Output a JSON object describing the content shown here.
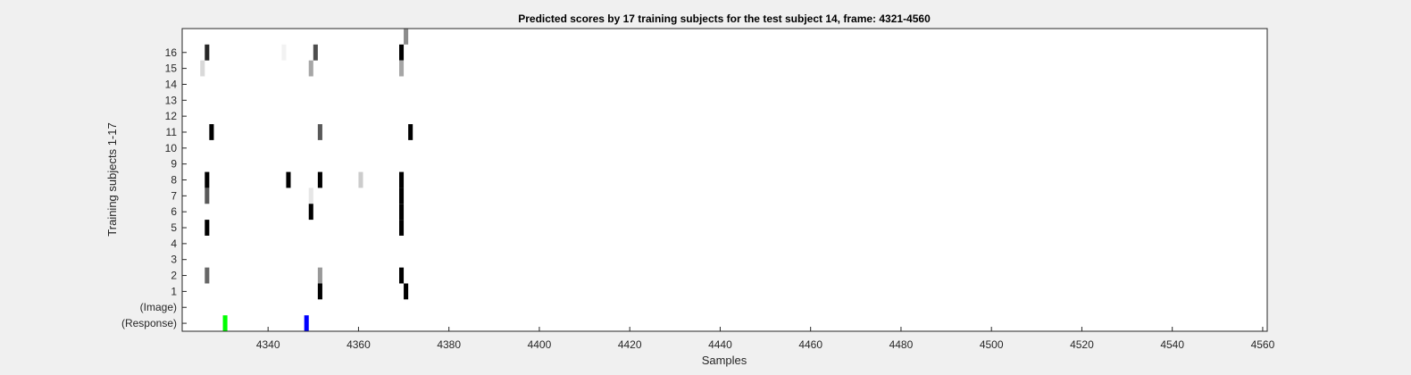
{
  "chart_data": {
    "type": "heatmap",
    "title": "Predicted scores by 17 training subjects for the test subject 14, frame: 4321-4560",
    "xlabel": "Samples",
    "ylabel": "Training subjects 1-17",
    "xlim": [
      4321,
      4560
    ],
    "x_ticks": [
      "4340",
      "4360",
      "4380",
      "4400",
      "4420",
      "4440",
      "4460",
      "4480",
      "4500",
      "4520",
      "4540",
      "4560"
    ],
    "rows": [
      "(Response)",
      "(Image)",
      "1",
      "2",
      "3",
      "4",
      "5",
      "6",
      "7",
      "8",
      "9",
      "10",
      "11",
      "12",
      "13",
      "14",
      "15",
      "16",
      "17"
    ],
    "y_tick_labels": [
      "(Response)",
      "(Image)",
      "1",
      "2",
      "3",
      "4",
      "5",
      "6",
      "7",
      "8",
      "9",
      "10",
      "11",
      "12",
      "13",
      "14",
      "15",
      "16"
    ],
    "grid": false,
    "colormap": "white (0) to black (1)",
    "cells": [
      {
        "row": "17",
        "x": 4370,
        "value": 0.45
      },
      {
        "row": "16",
        "x": 4326,
        "value": 0.85
      },
      {
        "row": "16",
        "x": 4343,
        "value": 0.05
      },
      {
        "row": "16",
        "x": 4350,
        "value": 0.7
      },
      {
        "row": "16",
        "x": 4369,
        "value": 1.0
      },
      {
        "row": "15",
        "x": 4325,
        "value": 0.15
      },
      {
        "row": "15",
        "x": 4349,
        "value": 0.35
      },
      {
        "row": "15",
        "x": 4369,
        "value": 0.35
      },
      {
        "row": "11",
        "x": 4327,
        "value": 1.0
      },
      {
        "row": "11",
        "x": 4351,
        "value": 0.65
      },
      {
        "row": "11",
        "x": 4371,
        "value": 1.0
      },
      {
        "row": "8",
        "x": 4326,
        "value": 1.0
      },
      {
        "row": "8",
        "x": 4344,
        "value": 1.0
      },
      {
        "row": "8",
        "x": 4351,
        "value": 1.0
      },
      {
        "row": "8",
        "x": 4360,
        "value": 0.2
      },
      {
        "row": "8",
        "x": 4369,
        "value": 1.0
      },
      {
        "row": "7",
        "x": 4326,
        "value": 0.65
      },
      {
        "row": "7",
        "x": 4349,
        "value": 0.1
      },
      {
        "row": "7",
        "x": 4369,
        "value": 1.0
      },
      {
        "row": "6",
        "x": 4349,
        "value": 1.0
      },
      {
        "row": "6",
        "x": 4369,
        "value": 1.0
      },
      {
        "row": "5",
        "x": 4326,
        "value": 1.0
      },
      {
        "row": "5",
        "x": 4369,
        "value": 1.0
      },
      {
        "row": "2",
        "x": 4326,
        "value": 0.6
      },
      {
        "row": "2",
        "x": 4351,
        "value": 0.4
      },
      {
        "row": "2",
        "x": 4369,
        "value": 1.0
      },
      {
        "row": "1",
        "x": 4351,
        "value": 1.0
      },
      {
        "row": "1",
        "x": 4370,
        "value": 1.0
      }
    ],
    "events": [
      {
        "row": "(Response)",
        "x": 4330,
        "color": "#00ff00"
      },
      {
        "row": "(Response)",
        "x": 4348,
        "color": "#0000ff"
      }
    ]
  }
}
